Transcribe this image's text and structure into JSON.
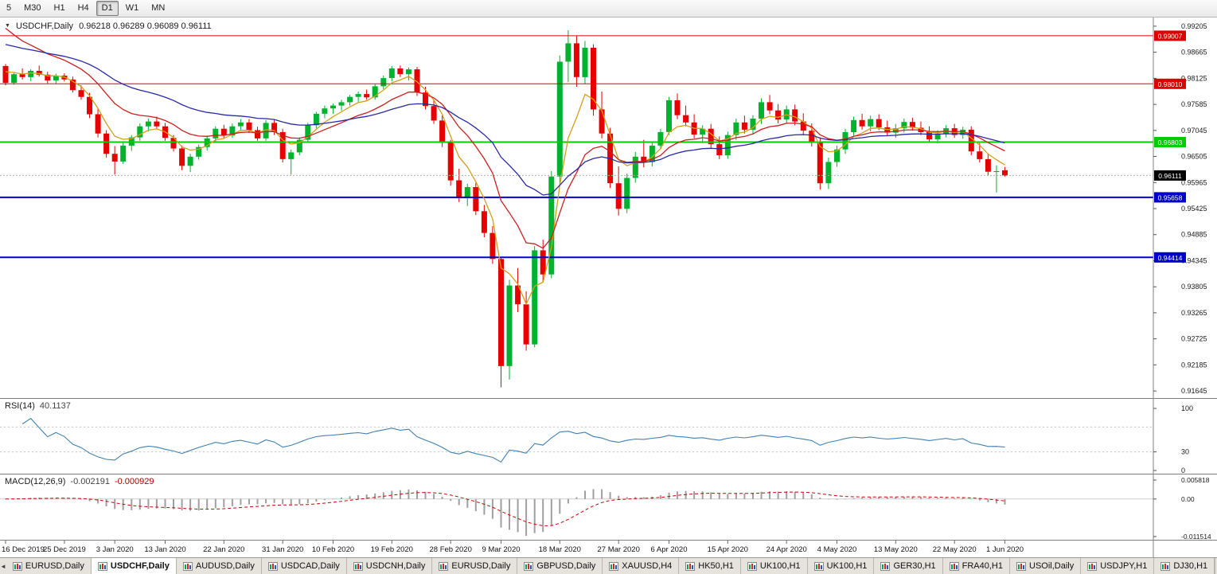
{
  "toolbar": {
    "timeframes": [
      {
        "label": "5",
        "active": false
      },
      {
        "label": "M30",
        "active": false
      },
      {
        "label": "H1",
        "active": false
      },
      {
        "label": "H4",
        "active": false
      },
      {
        "label": "D1",
        "active": true
      },
      {
        "label": "W1",
        "active": false
      },
      {
        "label": "MN",
        "active": false
      }
    ]
  },
  "chart_header": {
    "collapse_icon": "▼",
    "symbol": "USDCHF,Daily",
    "ohlc": "0.96218 0.96289 0.96089 0.96111"
  },
  "indicators": {
    "rsi": {
      "name": "RSI(14)",
      "value": "40.1137"
    },
    "macd": {
      "name": "MACD(12,26,9)",
      "value_main": "-0.002191",
      "value_signal": "-0.000929"
    }
  },
  "colors": {
    "candle_up": "#00b22d",
    "candle_down": "#e60000",
    "background": "#ffffff",
    "axis_text": "#1a1a1a",
    "panel_border": "#808080"
  },
  "chart_data": {
    "type": "candlestick",
    "symbol": "USDCHF",
    "timeframe": "Daily",
    "price_range": [
      0.9158,
      0.9922
    ],
    "candles": [
      [
        0.9838,
        0.9842,
        0.9798,
        0.9803
      ],
      [
        0.9803,
        0.9825,
        0.9799,
        0.9821
      ],
      [
        0.9821,
        0.9833,
        0.981,
        0.9815
      ],
      [
        0.9815,
        0.9831,
        0.9807,
        0.9828
      ],
      [
        0.9828,
        0.9839,
        0.9816,
        0.982
      ],
      [
        0.982,
        0.9826,
        0.9802,
        0.9808
      ],
      [
        0.9808,
        0.9822,
        0.9801,
        0.9818
      ],
      [
        0.9818,
        0.9823,
        0.9806,
        0.981
      ],
      [
        0.981,
        0.9816,
        0.9783,
        0.9788
      ],
      [
        0.9788,
        0.9798,
        0.9768,
        0.9774
      ],
      [
        0.9774,
        0.9782,
        0.973,
        0.9738
      ],
      [
        0.9738,
        0.975,
        0.969,
        0.9698
      ],
      [
        0.9698,
        0.9705,
        0.9648,
        0.9656
      ],
      [
        0.9656,
        0.9672,
        0.9613,
        0.964
      ],
      [
        0.964,
        0.9679,
        0.9635,
        0.9673
      ],
      [
        0.9673,
        0.9695,
        0.9662,
        0.969
      ],
      [
        0.969,
        0.9719,
        0.9683,
        0.9713
      ],
      [
        0.9713,
        0.9729,
        0.9702,
        0.9723
      ],
      [
        0.9723,
        0.9733,
        0.9708,
        0.9713
      ],
      [
        0.9713,
        0.972,
        0.9683,
        0.9689
      ],
      [
        0.9689,
        0.9695,
        0.9661,
        0.9667
      ],
      [
        0.9667,
        0.9673,
        0.9622,
        0.9631
      ],
      [
        0.9631,
        0.9656,
        0.9618,
        0.965
      ],
      [
        0.965,
        0.9675,
        0.9644,
        0.967
      ],
      [
        0.967,
        0.9694,
        0.9663,
        0.9688
      ],
      [
        0.9688,
        0.9713,
        0.968,
        0.9708
      ],
      [
        0.9708,
        0.9716,
        0.9688,
        0.9694
      ],
      [
        0.9694,
        0.9719,
        0.9689,
        0.9713
      ],
      [
        0.9713,
        0.9728,
        0.9704,
        0.9721
      ],
      [
        0.9721,
        0.9728,
        0.9699,
        0.9705
      ],
      [
        0.9705,
        0.9712,
        0.9683,
        0.9688
      ],
      [
        0.9688,
        0.9726,
        0.9683,
        0.972
      ],
      [
        0.972,
        0.9728,
        0.9695,
        0.9701
      ],
      [
        0.9701,
        0.9708,
        0.9638,
        0.9645
      ],
      [
        0.9645,
        0.9665,
        0.9613,
        0.9659
      ],
      [
        0.9659,
        0.969,
        0.9653,
        0.9685
      ],
      [
        0.9685,
        0.972,
        0.968,
        0.9715
      ],
      [
        0.9715,
        0.9743,
        0.9709,
        0.9739
      ],
      [
        0.9739,
        0.9756,
        0.973,
        0.975
      ],
      [
        0.975,
        0.976,
        0.9739,
        0.9756
      ],
      [
        0.9756,
        0.9768,
        0.9745,
        0.9763
      ],
      [
        0.9763,
        0.9778,
        0.9756,
        0.9774
      ],
      [
        0.9774,
        0.9785,
        0.9764,
        0.978
      ],
      [
        0.978,
        0.9789,
        0.9768,
        0.9773
      ],
      [
        0.9773,
        0.98,
        0.9768,
        0.9796
      ],
      [
        0.9796,
        0.9818,
        0.979,
        0.9813
      ],
      [
        0.9813,
        0.9838,
        0.9806,
        0.9833
      ],
      [
        0.9833,
        0.9839,
        0.9815,
        0.9821
      ],
      [
        0.9821,
        0.9835,
        0.9808,
        0.9831
      ],
      [
        0.9831,
        0.9836,
        0.9776,
        0.9783
      ],
      [
        0.9783,
        0.9795,
        0.9748,
        0.9755
      ],
      [
        0.9755,
        0.9768,
        0.9718,
        0.9725
      ],
      [
        0.9725,
        0.9736,
        0.967,
        0.9679
      ],
      [
        0.9679,
        0.9685,
        0.959,
        0.9601
      ],
      [
        0.9601,
        0.9625,
        0.9556,
        0.9564
      ],
      [
        0.9564,
        0.9594,
        0.9548,
        0.9587
      ],
      [
        0.9587,
        0.9596,
        0.9529,
        0.9537
      ],
      [
        0.9537,
        0.955,
        0.9483,
        0.9492
      ],
      [
        0.9492,
        0.9506,
        0.9428,
        0.9438
      ],
      [
        0.9438,
        0.9442,
        0.9172,
        0.9216
      ],
      [
        0.9216,
        0.9395,
        0.9188,
        0.9383
      ],
      [
        0.9383,
        0.9419,
        0.9328,
        0.9344
      ],
      [
        0.9344,
        0.9371,
        0.9248,
        0.9261
      ],
      [
        0.9261,
        0.9465,
        0.9255,
        0.9456
      ],
      [
        0.9456,
        0.9478,
        0.939,
        0.9406
      ],
      [
        0.9406,
        0.962,
        0.9398,
        0.9609
      ],
      [
        0.9609,
        0.986,
        0.959,
        0.9847
      ],
      [
        0.9847,
        0.9912,
        0.9805,
        0.9885
      ],
      [
        0.9885,
        0.9901,
        0.9795,
        0.9815
      ],
      [
        0.9815,
        0.989,
        0.98,
        0.9876
      ],
      [
        0.9876,
        0.9883,
        0.9735,
        0.9748
      ],
      [
        0.9748,
        0.9785,
        0.9688,
        0.9698
      ],
      [
        0.9698,
        0.971,
        0.9585,
        0.9595
      ],
      [
        0.9595,
        0.963,
        0.9528,
        0.9542
      ],
      [
        0.9542,
        0.9615,
        0.9533,
        0.9606
      ],
      [
        0.9606,
        0.966,
        0.9596,
        0.965
      ],
      [
        0.965,
        0.9685,
        0.9628,
        0.9639
      ],
      [
        0.9639,
        0.968,
        0.963,
        0.9673
      ],
      [
        0.9673,
        0.9708,
        0.9665,
        0.9701
      ],
      [
        0.9701,
        0.9774,
        0.9695,
        0.9767
      ],
      [
        0.9767,
        0.9781,
        0.9728,
        0.9736
      ],
      [
        0.9736,
        0.9756,
        0.9713,
        0.9721
      ],
      [
        0.9721,
        0.9738,
        0.9688,
        0.9696
      ],
      [
        0.9696,
        0.9715,
        0.9678,
        0.9708
      ],
      [
        0.9708,
        0.9718,
        0.9668,
        0.9676
      ],
      [
        0.9676,
        0.9692,
        0.9645,
        0.9653
      ],
      [
        0.9653,
        0.9702,
        0.9646,
        0.9695
      ],
      [
        0.9695,
        0.9729,
        0.9685,
        0.9721
      ],
      [
        0.9721,
        0.9735,
        0.9698,
        0.9706
      ],
      [
        0.9706,
        0.9736,
        0.9696,
        0.9729
      ],
      [
        0.9729,
        0.9771,
        0.9718,
        0.9763
      ],
      [
        0.9763,
        0.9778,
        0.9738,
        0.9746
      ],
      [
        0.9746,
        0.9759,
        0.9719,
        0.9727
      ],
      [
        0.9727,
        0.9756,
        0.9718,
        0.9748
      ],
      [
        0.9748,
        0.9758,
        0.9715,
        0.9723
      ],
      [
        0.9723,
        0.974,
        0.9695,
        0.9704
      ],
      [
        0.9704,
        0.9719,
        0.9671,
        0.9681
      ],
      [
        0.9681,
        0.969,
        0.9582,
        0.9595
      ],
      [
        0.9595,
        0.9648,
        0.9583,
        0.9639
      ],
      [
        0.9639,
        0.9673,
        0.9629,
        0.9665
      ],
      [
        0.9665,
        0.9708,
        0.9656,
        0.9701
      ],
      [
        0.9701,
        0.9733,
        0.9692,
        0.9726
      ],
      [
        0.9726,
        0.9739,
        0.9706,
        0.9713
      ],
      [
        0.9713,
        0.9735,
        0.9702,
        0.9728
      ],
      [
        0.9728,
        0.9738,
        0.9705,
        0.9711
      ],
      [
        0.9711,
        0.9725,
        0.9693,
        0.97
      ],
      [
        0.97,
        0.9718,
        0.9689,
        0.9709
      ],
      [
        0.9709,
        0.9729,
        0.97,
        0.9722
      ],
      [
        0.9722,
        0.9731,
        0.9704,
        0.971
      ],
      [
        0.971,
        0.9723,
        0.9695,
        0.9701
      ],
      [
        0.9701,
        0.9713,
        0.9679,
        0.9686
      ],
      [
        0.9686,
        0.9705,
        0.9678,
        0.9698
      ],
      [
        0.9698,
        0.9715,
        0.969,
        0.9709
      ],
      [
        0.9709,
        0.9718,
        0.9689,
        0.9695
      ],
      [
        0.9695,
        0.9712,
        0.9687,
        0.9706
      ],
      [
        0.9706,
        0.9713,
        0.9653,
        0.9661
      ],
      [
        0.9661,
        0.9678,
        0.9638,
        0.9645
      ],
      [
        0.9645,
        0.9656,
        0.9611,
        0.9619
      ],
      [
        0.9619,
        0.9632,
        0.9576,
        0.962
      ],
      [
        0.96218,
        0.96289,
        0.96089,
        0.96111
      ]
    ],
    "moving_averages": [
      {
        "period": 5,
        "method": "ema",
        "color": "#d4a017",
        "seed": 0.9838
      },
      {
        "period": 13,
        "method": "ema",
        "color": "#cc2020",
        "seed": 0.9935
      },
      {
        "period": 30,
        "method": "ema",
        "color": "#2929a3",
        "seed": 0.9888
      }
    ],
    "hlines": [
      {
        "price": 0.99007,
        "label": "0.99007",
        "color": "#dd0000",
        "width": 1
      },
      {
        "price": 0.9801,
        "label": "0.98010",
        "color": "#dd0000",
        "width": 1
      },
      {
        "price": 0.96803,
        "label": "0.96803",
        "color": "#00cc00",
        "width": 2
      },
      {
        "price": 0.95658,
        "label": "0.95658",
        "color": "#0000cc",
        "width": 2
      },
      {
        "price": 0.94414,
        "label": "0.94414",
        "color": "#0000cc",
        "width": 2
      }
    ],
    "current_price": {
      "value": 0.96111,
      "label": "0.96111",
      "bg": "#000000",
      "fg": "#ffffff"
    },
    "y_ticks": [
      "0.99205",
      "0.98665",
      "0.98125",
      "0.97585",
      "0.97045",
      "0.96505",
      "0.95965",
      "0.95425",
      "0.94885",
      "0.94345",
      "0.93805",
      "0.93265",
      "0.92725",
      "0.92185",
      "0.91645"
    ],
    "x_labels": [
      {
        "label": "16 Dec 2019",
        "i": 0
      },
      {
        "label": "25 Dec 2019",
        "i": 7
      },
      {
        "label": "3 Jan 2020",
        "i": 13
      },
      {
        "label": "13 Jan 2020",
        "i": 19
      },
      {
        "label": "22 Jan 2020",
        "i": 26
      },
      {
        "label": "31 Jan 2020",
        "i": 33
      },
      {
        "label": "10 Feb 2020",
        "i": 39
      },
      {
        "label": "19 Feb 2020",
        "i": 46
      },
      {
        "label": "28 Feb 2020",
        "i": 53
      },
      {
        "label": "9 Mar 2020",
        "i": 59
      },
      {
        "label": "18 Mar 2020",
        "i": 66
      },
      {
        "label": "27 Mar 2020",
        "i": 73
      },
      {
        "label": "6 Apr 2020",
        "i": 79
      },
      {
        "label": "15 Apr 2020",
        "i": 86
      },
      {
        "label": "24 Apr 2020",
        "i": 93
      },
      {
        "label": "4 May 2020",
        "i": 99
      },
      {
        "label": "13 May 2020",
        "i": 106
      },
      {
        "label": "22 May 2020",
        "i": 113
      },
      {
        "label": "1 Jun 2020",
        "i": 119
      }
    ],
    "rsi_panel": {
      "period": 14,
      "color": "#4080b0",
      "levels": [
        70,
        30
      ],
      "axis_labels": [
        {
          "v": 100,
          "t": "100"
        },
        {
          "v": 30,
          "t": "30"
        },
        {
          "v": 0,
          "t": "0"
        }
      ]
    },
    "macd_panel": {
      "fast": 12,
      "slow": 26,
      "signal": 9,
      "range": [
        -0.011514,
        0.005818
      ],
      "histogram_color": "#a0a0a0",
      "signal_color": "#cc0000",
      "axis_labels": [
        {
          "v": 0.005818,
          "t": "0.005818"
        },
        {
          "v": 0,
          "t": "0.00"
        },
        {
          "v": -0.011514,
          "t": "-0.011514"
        }
      ]
    }
  },
  "tabbar": {
    "left_arrow": "◄",
    "right_arrows": [
      "◄",
      "►"
    ],
    "tabs": [
      {
        "label": "EURUSD,Daily",
        "active": false
      },
      {
        "label": "USDCHF,Daily",
        "active": true
      },
      {
        "label": "AUDUSD,Daily",
        "active": false
      },
      {
        "label": "USDCAD,Daily",
        "active": false
      },
      {
        "label": "USDCNH,Daily",
        "active": false
      },
      {
        "label": "EURUSD,Daily",
        "active": false
      },
      {
        "label": "GBPUSD,Daily",
        "active": false
      },
      {
        "label": "XAUUSD,H4",
        "active": false
      },
      {
        "label": "HK50,H1",
        "active": false
      },
      {
        "label": "UK100,H1",
        "active": false
      },
      {
        "label": "UK100,H1",
        "active": false
      },
      {
        "label": "GER30,H1",
        "active": false
      },
      {
        "label": "FRA40,H1",
        "active": false
      },
      {
        "label": "USOil,Daily",
        "active": false
      },
      {
        "label": "USDJPY,H1",
        "active": false
      },
      {
        "label": "DJ30,H1",
        "active": false
      }
    ]
  }
}
